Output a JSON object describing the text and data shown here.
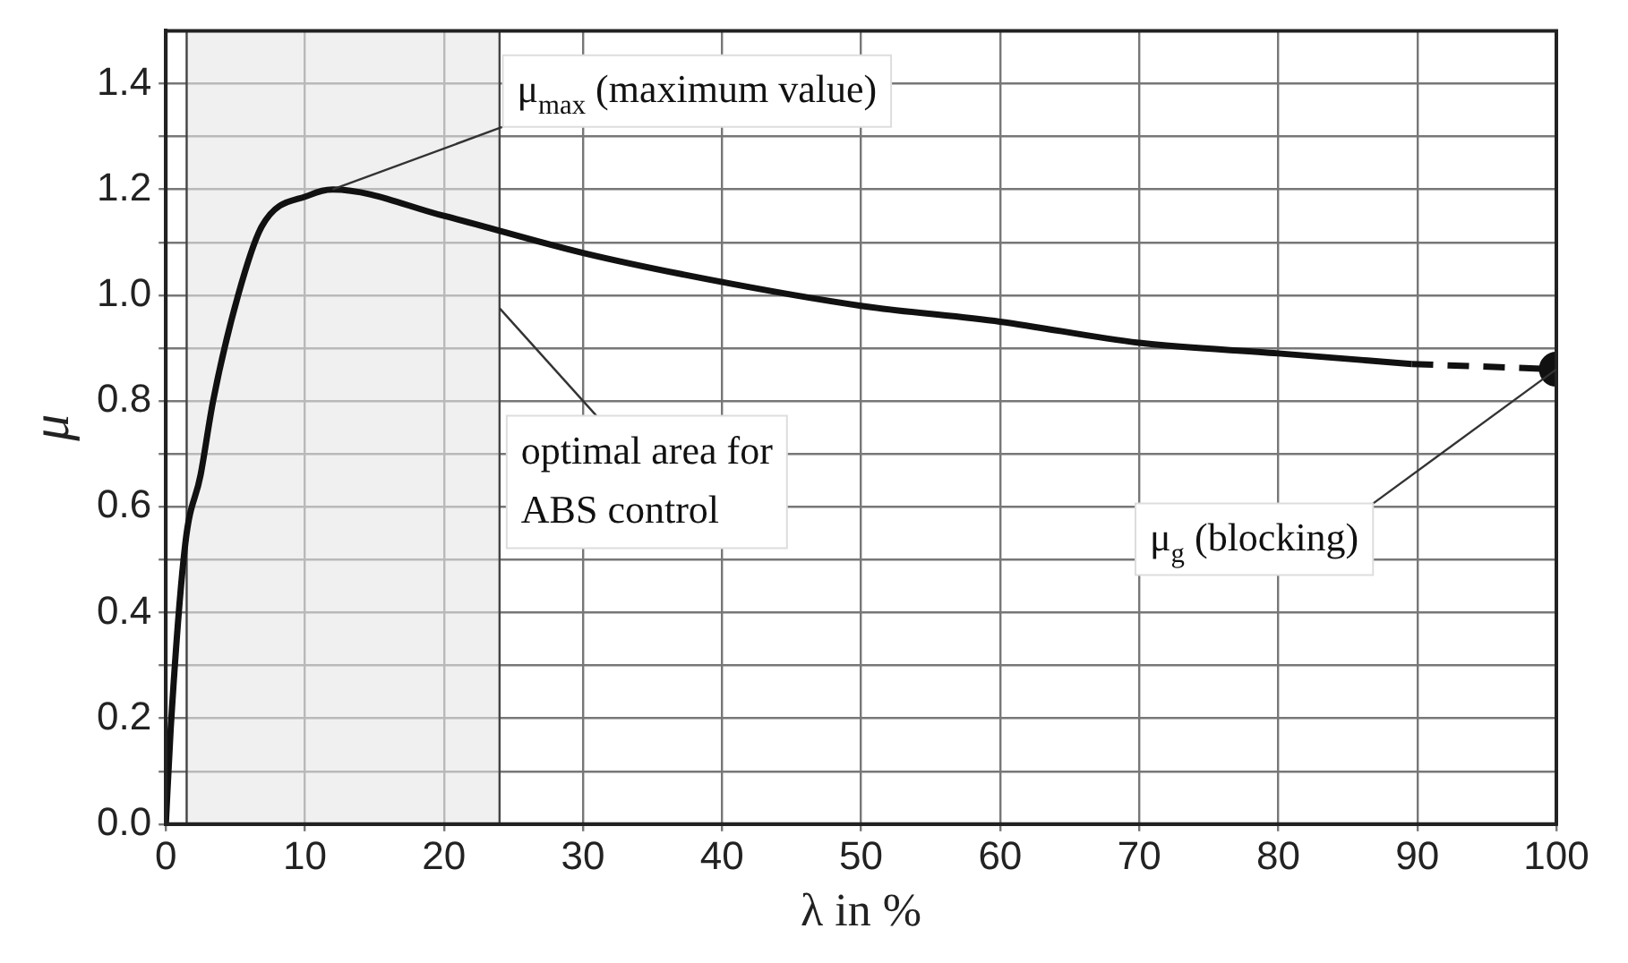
{
  "chart_data": {
    "type": "line",
    "xlabel": "λ in %",
    "ylabel": "μ",
    "xlim": [
      0,
      100
    ],
    "xticks": [
      0,
      10,
      20,
      30,
      40,
      50,
      60,
      70,
      80,
      90,
      100
    ],
    "ylim": [
      0,
      1.5
    ],
    "yticks": [
      {
        "value": 0,
        "label": "0.0"
      },
      {
        "value": 0.1,
        "label": null
      },
      {
        "value": 0.2,
        "label": "0.2"
      },
      {
        "value": 0.3,
        "label": null
      },
      {
        "value": 0.4,
        "label": "0.4"
      },
      {
        "value": 0.5,
        "label": null
      },
      {
        "value": 0.6,
        "label": "0.6"
      },
      {
        "value": 0.7,
        "label": null
      },
      {
        "value": 0.8,
        "label": "0.8"
      },
      {
        "value": 0.9,
        "label": null
      },
      {
        "value": 1.0,
        "label": "1.0"
      },
      {
        "value": 1.1,
        "label": null
      },
      {
        "value": 1.2,
        "label": "1.2"
      },
      {
        "value": 1.3,
        "label": null
      },
      {
        "value": 1.4,
        "label": "1.4"
      }
    ],
    "grid": true,
    "bands": [
      {
        "axis": "x",
        "from": 1.5,
        "to": 24,
        "label": "optimal area for ABS control",
        "color": "#e6e6e6"
      }
    ],
    "annotations": [
      {
        "text": "μ$_{max}$ (maximum value)",
        "x": 12,
        "y": 1.2
      },
      {
        "text": "μ$_{g}$ (blocking)",
        "x": 100,
        "y": 0.86
      }
    ],
    "series": [
      {
        "type": "line",
        "color": "#111111",
        "line_style": "solid",
        "marker": "none",
        "x": [
          0,
          0.35,
          1.4,
          2.5,
          3.4,
          5.2,
          6.9,
          10.4,
          12,
          20,
          30,
          39,
          50,
          60,
          70,
          80,
          89.6
        ],
        "values": [
          0,
          0.18,
          0.53,
          0.66,
          0.8,
          1.0,
          1.13,
          1.19,
          1.2,
          1.15,
          1.08,
          1.03,
          0.98,
          0.95,
          0.91,
          0.89,
          0.87
        ]
      },
      {
        "type": "line",
        "color": "#111111",
        "line_style": "dashed",
        "marker": "none",
        "x": [
          89.6,
          100
        ],
        "values": [
          0.87,
          0.86
        ]
      },
      {
        "type": "scatter",
        "color": "#111111",
        "marker": "circle",
        "x": [
          100
        ],
        "values": [
          0.86
        ]
      }
    ]
  }
}
